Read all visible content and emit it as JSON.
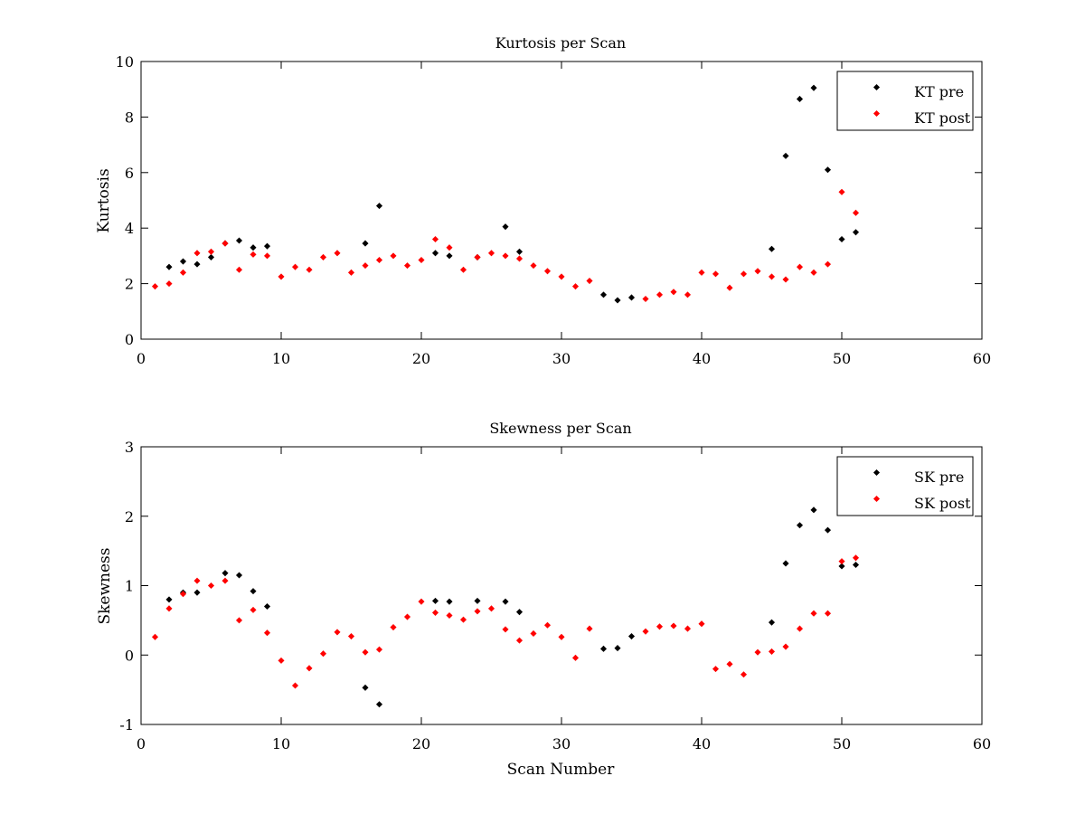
{
  "chart_data": [
    {
      "type": "scatter",
      "title": "Kurtosis per Scan",
      "xlabel": "",
      "ylabel": "Kurtosis",
      "xlim": [
        0,
        60
      ],
      "ylim": [
        0,
        10
      ],
      "xticks": [
        0,
        10,
        20,
        30,
        40,
        50,
        60
      ],
      "yticks": [
        0,
        2,
        4,
        6,
        8,
        10
      ],
      "grid": false,
      "legend_position": "top-right",
      "series": [
        {
          "name": "KT pre",
          "color": "#000000",
          "points": [
            [
              2,
              2.6
            ],
            [
              3,
              2.8
            ],
            [
              4,
              2.7
            ],
            [
              5,
              2.95
            ],
            [
              6,
              3.45
            ],
            [
              7,
              3.55
            ],
            [
              8,
              3.3
            ],
            [
              9,
              3.35
            ],
            [
              16,
              3.45
            ],
            [
              17,
              4.8
            ],
            [
              21,
              3.1
            ],
            [
              22,
              3.0
            ],
            [
              24,
              2.95
            ],
            [
              26,
              4.05
            ],
            [
              27,
              3.15
            ],
            [
              33,
              1.6
            ],
            [
              34,
              1.4
            ],
            [
              35,
              1.5
            ],
            [
              45,
              3.25
            ],
            [
              46,
              6.6
            ],
            [
              47,
              8.65
            ],
            [
              48,
              9.05
            ],
            [
              49,
              6.1
            ],
            [
              50,
              3.6
            ],
            [
              51,
              3.85
            ]
          ]
        },
        {
          "name": "KT post",
          "color": "#ff0000",
          "points": [
            [
              1,
              1.9
            ],
            [
              2,
              2.0
            ],
            [
              3,
              2.4
            ],
            [
              4,
              3.1
            ],
            [
              5,
              3.15
            ],
            [
              6,
              3.45
            ],
            [
              7,
              2.5
            ],
            [
              8,
              3.05
            ],
            [
              9,
              3.0
            ],
            [
              10,
              2.25
            ],
            [
              11,
              2.6
            ],
            [
              12,
              2.5
            ],
            [
              13,
              2.95
            ],
            [
              14,
              3.1
            ],
            [
              15,
              2.4
            ],
            [
              16,
              2.65
            ],
            [
              17,
              2.85
            ],
            [
              18,
              3.0
            ],
            [
              19,
              2.65
            ],
            [
              20,
              2.85
            ],
            [
              21,
              3.6
            ],
            [
              22,
              3.3
            ],
            [
              23,
              2.5
            ],
            [
              24,
              2.95
            ],
            [
              25,
              3.1
            ],
            [
              26,
              3.0
            ],
            [
              27,
              2.9
            ],
            [
              28,
              2.65
            ],
            [
              29,
              2.45
            ],
            [
              30,
              2.25
            ],
            [
              31,
              1.9
            ],
            [
              32,
              2.1
            ],
            [
              36,
              1.45
            ],
            [
              37,
              1.6
            ],
            [
              38,
              1.7
            ],
            [
              39,
              1.6
            ],
            [
              40,
              2.4
            ],
            [
              41,
              2.35
            ],
            [
              42,
              1.85
            ],
            [
              43,
              2.35
            ],
            [
              44,
              2.45
            ],
            [
              45,
              2.25
            ],
            [
              46,
              2.15
            ],
            [
              47,
              2.6
            ],
            [
              48,
              2.4
            ],
            [
              49,
              2.7
            ],
            [
              50,
              5.3
            ],
            [
              51,
              4.55
            ]
          ]
        }
      ]
    },
    {
      "type": "scatter",
      "title": "Skewness per Scan",
      "xlabel": "Scan Number",
      "ylabel": "Skewness",
      "xlim": [
        0,
        60
      ],
      "ylim": [
        -1,
        3
      ],
      "xticks": [
        0,
        10,
        20,
        30,
        40,
        50,
        60
      ],
      "yticks": [
        -1,
        0,
        1,
        2,
        3
      ],
      "grid": false,
      "legend_position": "top-right",
      "series": [
        {
          "name": "SK pre",
          "color": "#000000",
          "points": [
            [
              2,
              0.8
            ],
            [
              3,
              0.9
            ],
            [
              4,
              0.9
            ],
            [
              6,
              1.18
            ],
            [
              7,
              1.15
            ],
            [
              8,
              0.92
            ],
            [
              9,
              0.7
            ],
            [
              16,
              -0.47
            ],
            [
              17,
              -0.71
            ],
            [
              21,
              0.78
            ],
            [
              22,
              0.77
            ],
            [
              24,
              0.78
            ],
            [
              26,
              0.77
            ],
            [
              27,
              0.62
            ],
            [
              33,
              0.09
            ],
            [
              34,
              0.1
            ],
            [
              35,
              0.27
            ],
            [
              45,
              0.47
            ],
            [
              46,
              1.32
            ],
            [
              47,
              1.87
            ],
            [
              48,
              2.09
            ],
            [
              49,
              1.8
            ],
            [
              50,
              1.28
            ],
            [
              51,
              1.3
            ]
          ]
        },
        {
          "name": "SK post",
          "color": "#ff0000",
          "points": [
            [
              1,
              0.26
            ],
            [
              2,
              0.67
            ],
            [
              3,
              0.88
            ],
            [
              4,
              1.07
            ],
            [
              5,
              1.0
            ],
            [
              6,
              1.07
            ],
            [
              7,
              0.5
            ],
            [
              8,
              0.65
            ],
            [
              9,
              0.32
            ],
            [
              10,
              -0.08
            ],
            [
              11,
              -0.44
            ],
            [
              12,
              -0.19
            ],
            [
              13,
              0.02
            ],
            [
              14,
              0.33
            ],
            [
              15,
              0.27
            ],
            [
              16,
              0.04
            ],
            [
              17,
              0.08
            ],
            [
              18,
              0.4
            ],
            [
              19,
              0.55
            ],
            [
              20,
              0.77
            ],
            [
              21,
              0.61
            ],
            [
              22,
              0.57
            ],
            [
              23,
              0.51
            ],
            [
              24,
              0.63
            ],
            [
              25,
              0.67
            ],
            [
              26,
              0.37
            ],
            [
              27,
              0.21
            ],
            [
              28,
              0.31
            ],
            [
              29,
              0.43
            ],
            [
              30,
              0.26
            ],
            [
              31,
              -0.04
            ],
            [
              32,
              0.38
            ],
            [
              36,
              0.34
            ],
            [
              37,
              0.41
            ],
            [
              38,
              0.42
            ],
            [
              39,
              0.38
            ],
            [
              40,
              0.45
            ],
            [
              41,
              -0.2
            ],
            [
              42,
              -0.13
            ],
            [
              43,
              -0.28
            ],
            [
              44,
              0.04
            ],
            [
              45,
              0.05
            ],
            [
              46,
              0.12
            ],
            [
              47,
              0.38
            ],
            [
              48,
              0.6
            ],
            [
              49,
              0.6
            ],
            [
              50,
              1.35
            ],
            [
              51,
              1.4
            ]
          ]
        }
      ]
    }
  ]
}
